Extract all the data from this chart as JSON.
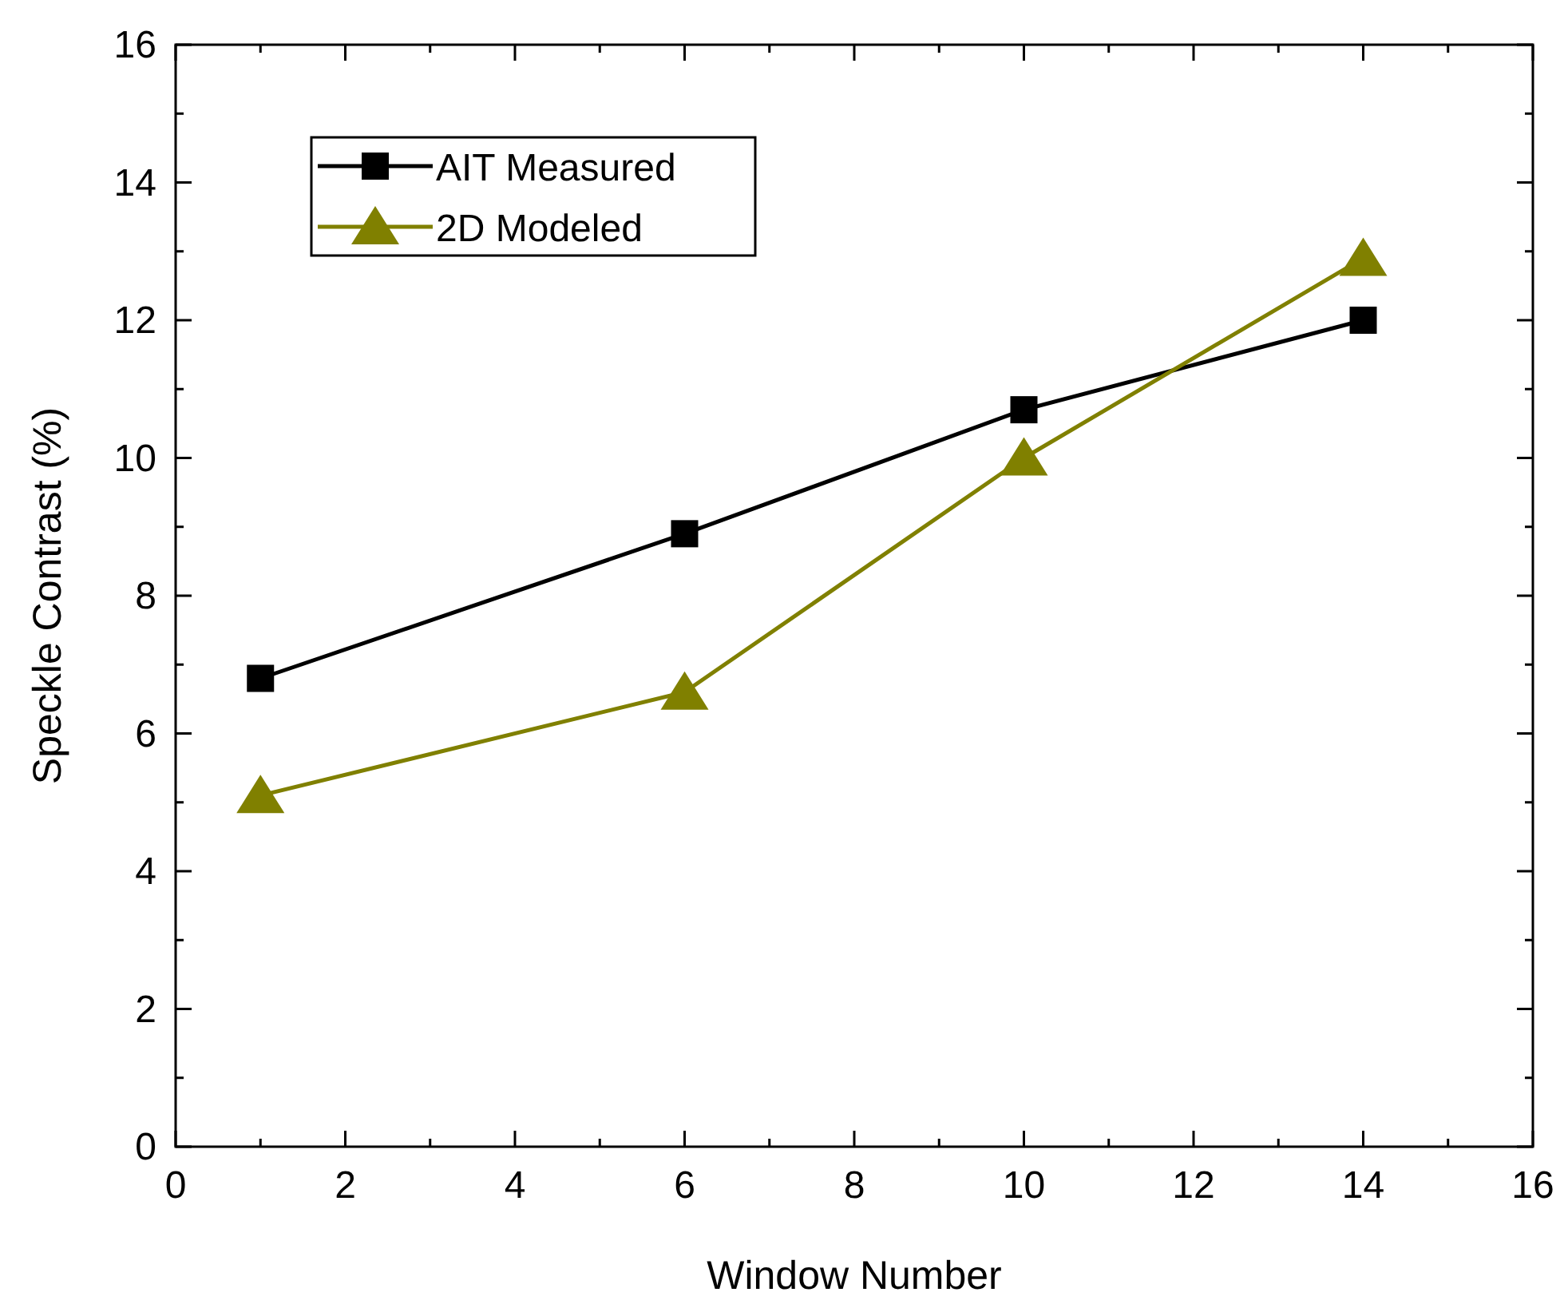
{
  "chart_data": {
    "type": "line",
    "xlabel": "Window Number",
    "ylabel": "Speckle Contrast (%)",
    "xlim": [
      0,
      16
    ],
    "xticks": [
      0,
      2,
      4,
      6,
      8,
      10,
      12,
      14,
      16
    ],
    "ylim": [
      0,
      16
    ],
    "yticks": [
      0,
      2,
      4,
      6,
      8,
      10,
      12,
      14,
      16
    ],
    "grid": false,
    "legend": "top left",
    "line_style": "solid",
    "series": [
      {
        "name": "AIT Measured",
        "color": "#000000",
        "marker": "square",
        "x": [
          1,
          6,
          10,
          14
        ],
        "values": [
          6.8,
          8.9,
          10.7,
          12.0
        ]
      },
      {
        "name": "2D Modeled",
        "color": "#808000",
        "marker": "triangle",
        "x": [
          1,
          6,
          10,
          14
        ],
        "values": [
          5.1,
          6.6,
          10.0,
          12.9
        ]
      }
    ]
  }
}
